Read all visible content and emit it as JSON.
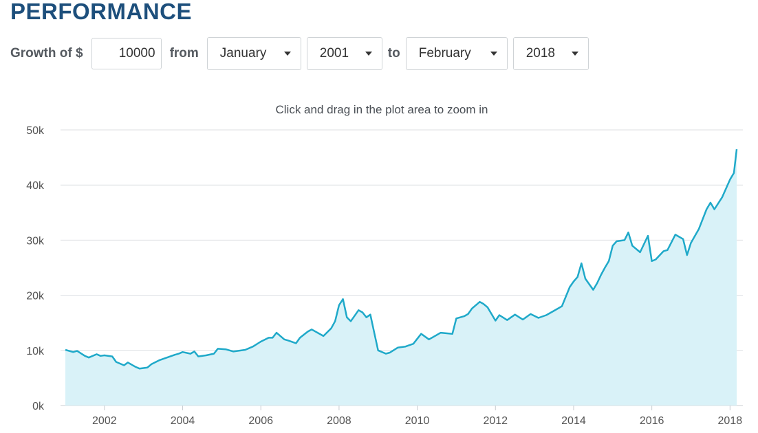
{
  "header": {
    "title": "PERFORMANCE"
  },
  "controls": {
    "growth_label": "Growth of $",
    "amount": "10000",
    "from_label": "from",
    "start_month": "January",
    "start_year": "2001",
    "to_label": "to",
    "end_month": "February",
    "end_year": "2018"
  },
  "chart_hint": "Click and drag in the plot area to zoom in",
  "chart_data": {
    "type": "area",
    "line_color": "#1fa9c9",
    "fill_color": "#d9f2f8",
    "grid": true,
    "ylim": [
      0,
      50000
    ],
    "xlim": [
      2001.0,
      2018.17
    ],
    "y_ticks": [
      {
        "value": 0,
        "label": "0k"
      },
      {
        "value": 10000,
        "label": "10k"
      },
      {
        "value": 20000,
        "label": "20k"
      },
      {
        "value": 30000,
        "label": "30k"
      },
      {
        "value": 40000,
        "label": "40k"
      },
      {
        "value": 50000,
        "label": "50k"
      }
    ],
    "x_ticks": [
      {
        "value": 2002,
        "label": "2002"
      },
      {
        "value": 2004,
        "label": "2004"
      },
      {
        "value": 2006,
        "label": "2006"
      },
      {
        "value": 2008,
        "label": "2008"
      },
      {
        "value": 2010,
        "label": "2010"
      },
      {
        "value": 2012,
        "label": "2012"
      },
      {
        "value": 2014,
        "label": "2014"
      },
      {
        "value": 2016,
        "label": "2016"
      },
      {
        "value": 2018,
        "label": "2018"
      }
    ],
    "x": [
      2001.0,
      2001.2,
      2001.3,
      2001.5,
      2001.6,
      2001.8,
      2001.9,
      2002.0,
      2002.2,
      2002.3,
      2002.5,
      2002.6,
      2002.8,
      2002.9,
      2003.1,
      2003.2,
      2003.4,
      2003.6,
      2003.8,
      2003.9,
      2004.0,
      2004.2,
      2004.3,
      2004.4,
      2004.6,
      2004.8,
      2004.9,
      2005.1,
      2005.3,
      2005.6,
      2005.8,
      2006.0,
      2006.2,
      2006.3,
      2006.4,
      2006.6,
      2006.7,
      2006.9,
      2007.0,
      2007.2,
      2007.3,
      2007.6,
      2007.8,
      2007.9,
      2008.0,
      2008.1,
      2008.2,
      2008.3,
      2008.5,
      2008.6,
      2008.7,
      2008.8,
      2008.9,
      2009.0,
      2009.2,
      2009.3,
      2009.5,
      2009.7,
      2009.9,
      2010.1,
      2010.3,
      2010.6,
      2010.9,
      2011.0,
      2011.2,
      2011.3,
      2011.4,
      2011.6,
      2011.7,
      2011.8,
      2012.0,
      2012.1,
      2012.3,
      2012.5,
      2012.7,
      2012.9,
      2013.1,
      2013.3,
      2013.5,
      2013.7,
      2013.9,
      2014.0,
      2014.1,
      2014.2,
      2014.3,
      2014.5,
      2014.6,
      2014.7,
      2014.8,
      2014.9,
      2015.0,
      2015.1,
      2015.3,
      2015.4,
      2015.5,
      2015.7,
      2015.9,
      2016.0,
      2016.1,
      2016.3,
      2016.4,
      2016.6,
      2016.8,
      2016.9,
      2017.0,
      2017.2,
      2017.4,
      2017.5,
      2017.6,
      2017.8,
      2018.0,
      2018.1,
      2018.17
    ],
    "values": [
      10100,
      9700,
      9900,
      9000,
      8700,
      9300,
      9000,
      9100,
      8900,
      7900,
      7300,
      7800,
      7000,
      6700,
      6900,
      7500,
      8200,
      8700,
      9200,
      9400,
      9700,
      9400,
      9800,
      8900,
      9100,
      9400,
      10300,
      10200,
      9800,
      10100,
      10700,
      11600,
      12300,
      12300,
      13200,
      12000,
      11800,
      11300,
      12300,
      13400,
      13800,
      12600,
      14000,
      15300,
      18200,
      19300,
      16000,
      15300,
      17300,
      16900,
      16000,
      16500,
      13200,
      10000,
      9400,
      9600,
      10500,
      10700,
      11200,
      13000,
      12000,
      13200,
      13000,
      15800,
      16200,
      16600,
      17600,
      18800,
      18400,
      17800,
      15400,
      16400,
      15500,
      16500,
      15600,
      16600,
      15900,
      16400,
      17200,
      18000,
      21500,
      22500,
      23300,
      25800,
      23000,
      21000,
      22200,
      23700,
      25000,
      26200,
      29000,
      29800,
      30000,
      31400,
      29000,
      27800,
      30800,
      26200,
      26500,
      28000,
      28200,
      31000,
      30200,
      27300,
      29500,
      32000,
      35600,
      36800,
      35600,
      37800,
      41000,
      42200,
      46500
    ]
  }
}
